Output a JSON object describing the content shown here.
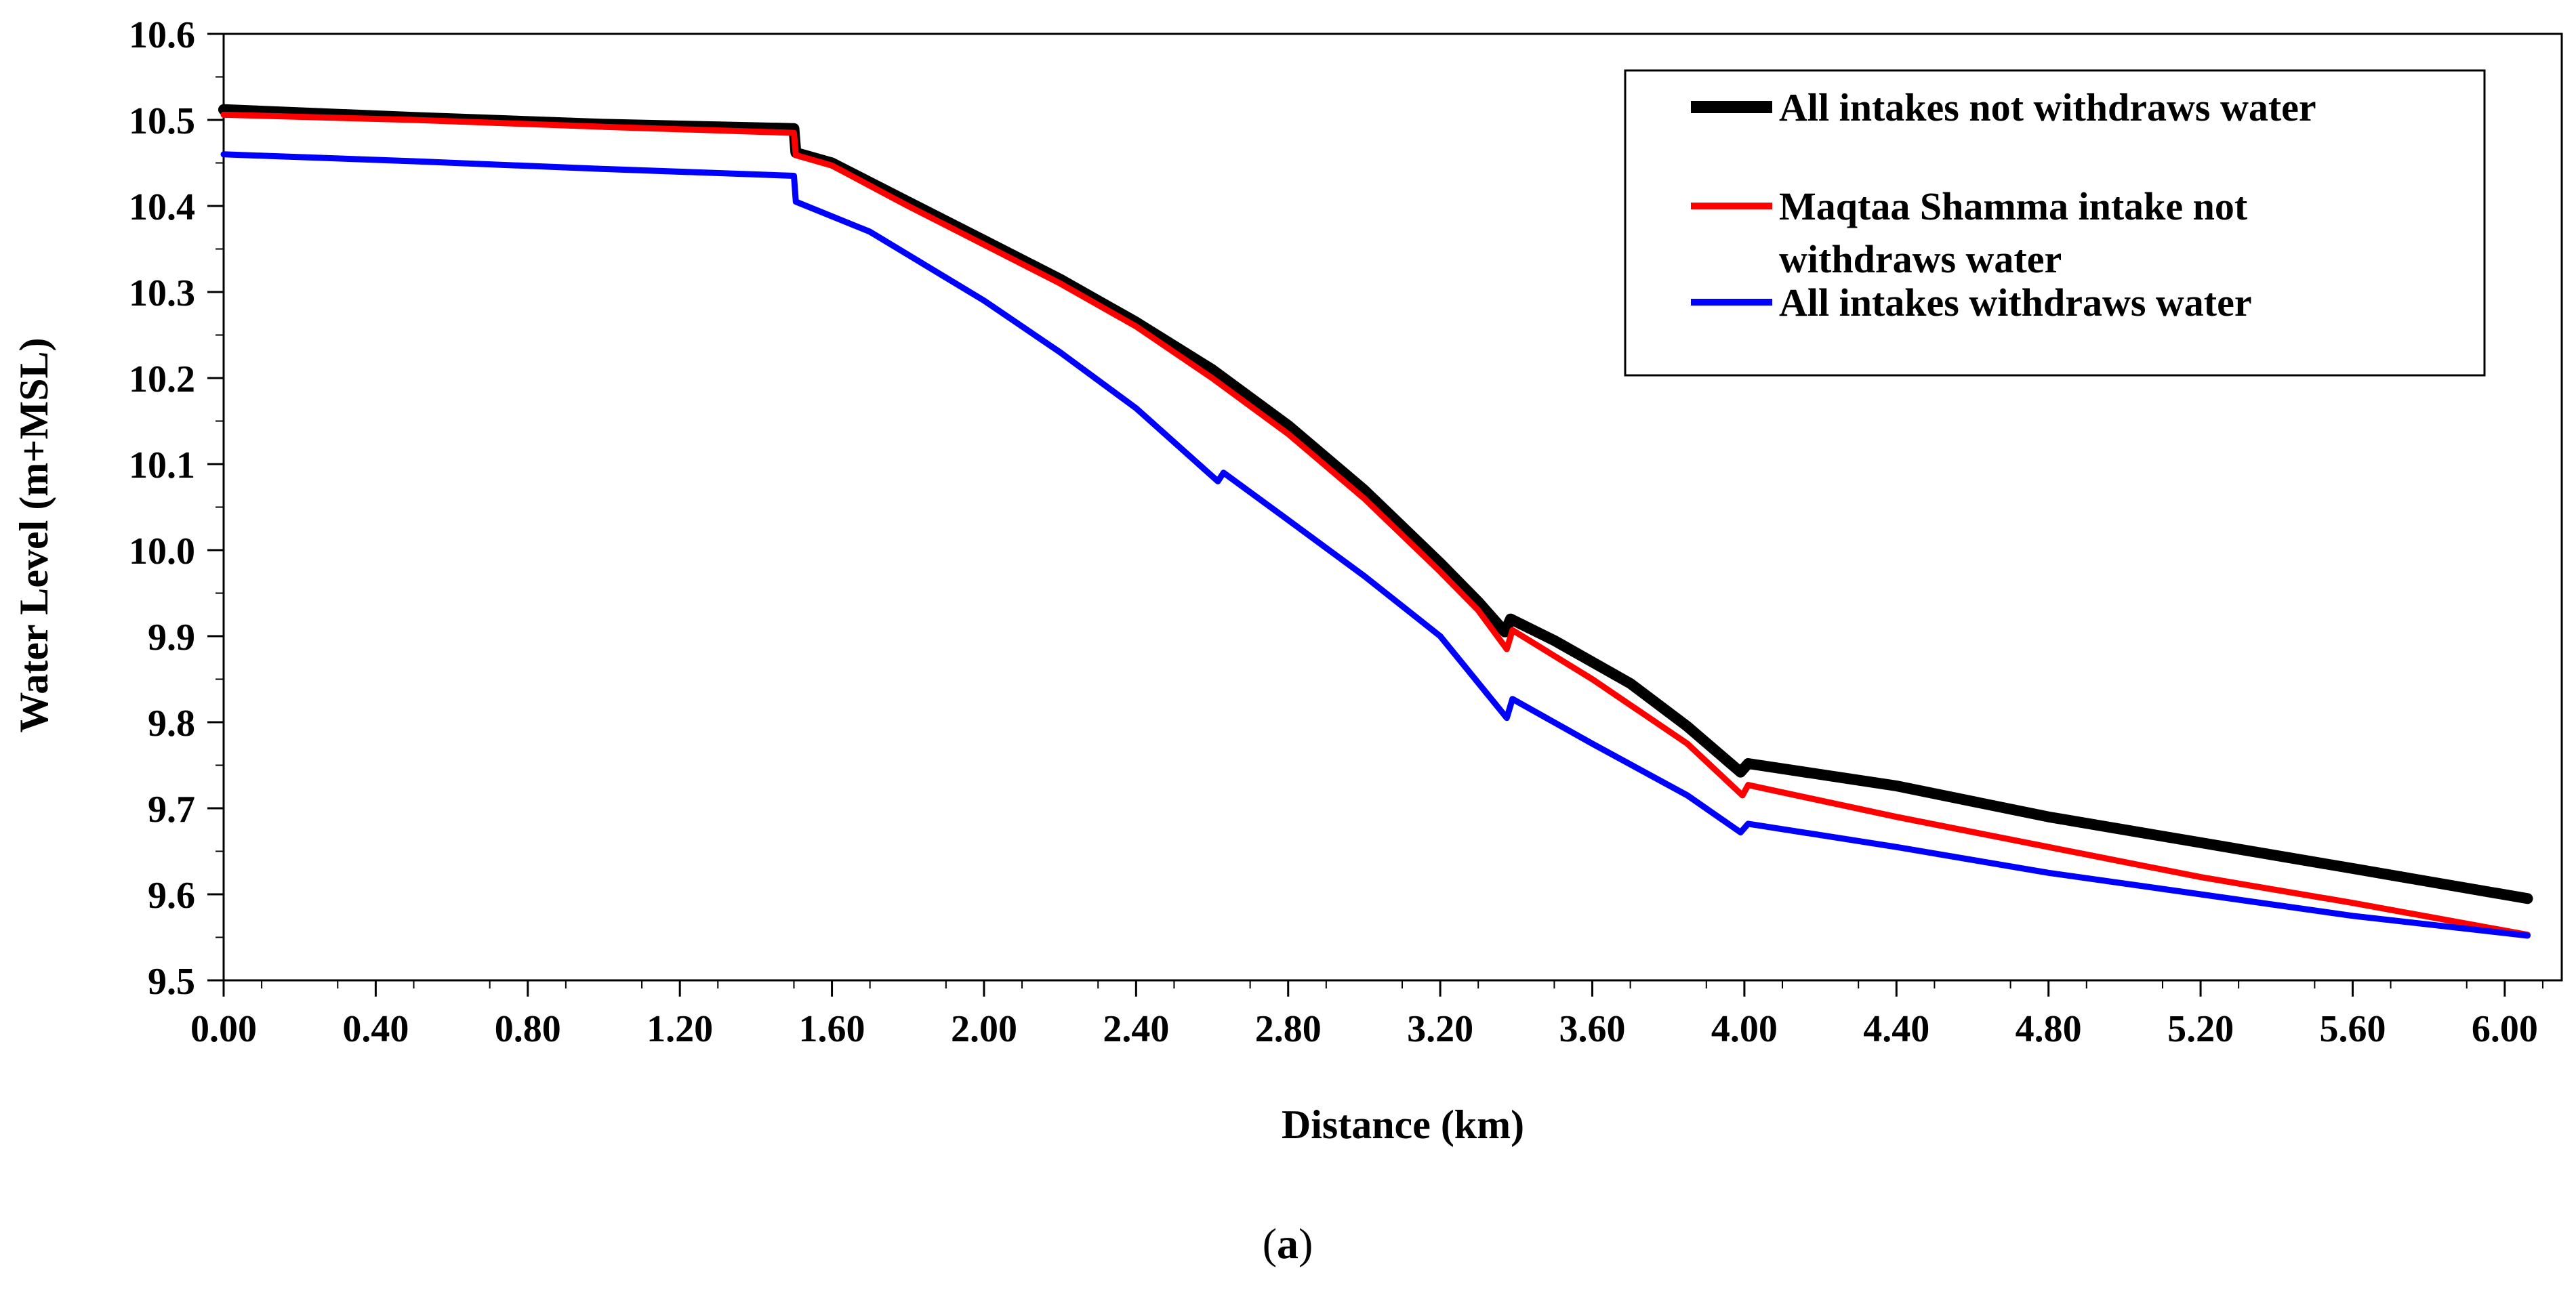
{
  "chart_data": {
    "type": "line",
    "title": "",
    "xlabel": "Distance (km)",
    "ylabel": "Water Level (m+MSL)",
    "xlim": [
      0.0,
      6.15
    ],
    "ylim": [
      9.5,
      10.6
    ],
    "xticks": [
      0.0,
      0.4,
      0.8,
      1.2,
      1.6,
      2.0,
      2.4,
      2.8,
      3.2,
      3.6,
      4.0,
      4.4,
      4.8,
      5.2,
      5.6,
      6.0
    ],
    "xtick_labels": [
      "0.00",
      "0.40",
      "0.80",
      "1.20",
      "1.60",
      "2.00",
      "2.40",
      "2.80",
      "3.20",
      "3.60",
      "4.00",
      "4.40",
      "4.80",
      "5.20",
      "5.60",
      "6.00"
    ],
    "yticks": [
      9.5,
      9.6,
      9.7,
      9.8,
      9.9,
      10.0,
      10.1,
      10.2,
      10.3,
      10.4,
      10.5,
      10.6
    ],
    "ytick_labels": [
      "9.5",
      "9.6",
      "9.7",
      "9.8",
      "9.9",
      "10.0",
      "10.1",
      "10.2",
      "10.3",
      "10.4",
      "10.5",
      "10.6"
    ],
    "grid": false,
    "legend_position": "top-right",
    "caption_open": "(",
    "caption_letter": "a",
    "caption_close": ")",
    "series": [
      {
        "name": "All intakes not withdraws water",
        "color": "#000000",
        "points": [
          [
            0.0,
            10.512
          ],
          [
            0.5,
            10.503
          ],
          [
            1.0,
            10.495
          ],
          [
            1.5,
            10.49
          ],
          [
            1.505,
            10.462
          ],
          [
            1.6,
            10.45
          ],
          [
            1.8,
            10.405
          ],
          [
            2.0,
            10.36
          ],
          [
            2.2,
            10.315
          ],
          [
            2.4,
            10.265
          ],
          [
            2.6,
            10.21
          ],
          [
            2.8,
            10.145
          ],
          [
            3.0,
            10.07
          ],
          [
            3.2,
            9.985
          ],
          [
            3.3,
            9.94
          ],
          [
            3.37,
            9.905
          ],
          [
            3.385,
            9.92
          ],
          [
            3.5,
            9.895
          ],
          [
            3.7,
            9.845
          ],
          [
            3.85,
            9.795
          ],
          [
            3.99,
            9.742
          ],
          [
            4.01,
            9.752
          ],
          [
            4.4,
            9.726
          ],
          [
            4.8,
            9.69
          ],
          [
            5.2,
            9.66
          ],
          [
            5.6,
            9.63
          ],
          [
            6.06,
            9.595
          ]
        ]
      },
      {
        "name": "Maqtaa Shamma intake not withdraws water",
        "color": "#ff0000",
        "points": [
          [
            0.0,
            10.506
          ],
          [
            0.5,
            10.5
          ],
          [
            1.0,
            10.492
          ],
          [
            1.5,
            10.485
          ],
          [
            1.505,
            10.459
          ],
          [
            1.6,
            10.447
          ],
          [
            1.8,
            10.4
          ],
          [
            2.0,
            10.355
          ],
          [
            2.2,
            10.31
          ],
          [
            2.4,
            10.26
          ],
          [
            2.6,
            10.2
          ],
          [
            2.8,
            10.135
          ],
          [
            3.0,
            10.06
          ],
          [
            3.2,
            9.975
          ],
          [
            3.3,
            9.93
          ],
          [
            3.375,
            9.885
          ],
          [
            3.39,
            9.907
          ],
          [
            3.6,
            9.85
          ],
          [
            3.85,
            9.775
          ],
          [
            3.995,
            9.715
          ],
          [
            4.01,
            9.727
          ],
          [
            4.4,
            9.69
          ],
          [
            4.8,
            9.655
          ],
          [
            5.2,
            9.62
          ],
          [
            5.6,
            9.59
          ],
          [
            6.06,
            9.553
          ]
        ]
      },
      {
        "name": "All intakes withdraws water",
        "color": "#0000ff",
        "points": [
          [
            0.0,
            10.46
          ],
          [
            0.5,
            10.452
          ],
          [
            1.0,
            10.443
          ],
          [
            1.5,
            10.435
          ],
          [
            1.505,
            10.405
          ],
          [
            1.7,
            10.37
          ],
          [
            2.0,
            10.29
          ],
          [
            2.2,
            10.23
          ],
          [
            2.4,
            10.165
          ],
          [
            2.615,
            10.08
          ],
          [
            2.63,
            10.09
          ],
          [
            2.8,
            10.035
          ],
          [
            3.0,
            9.97
          ],
          [
            3.2,
            9.9
          ],
          [
            3.375,
            9.805
          ],
          [
            3.39,
            9.827
          ],
          [
            3.6,
            9.775
          ],
          [
            3.85,
            9.715
          ],
          [
            3.99,
            9.672
          ],
          [
            4.01,
            9.682
          ],
          [
            4.4,
            9.655
          ],
          [
            4.8,
            9.625
          ],
          [
            5.2,
            9.6
          ],
          [
            5.6,
            9.575
          ],
          [
            6.06,
            9.552
          ]
        ]
      }
    ]
  }
}
